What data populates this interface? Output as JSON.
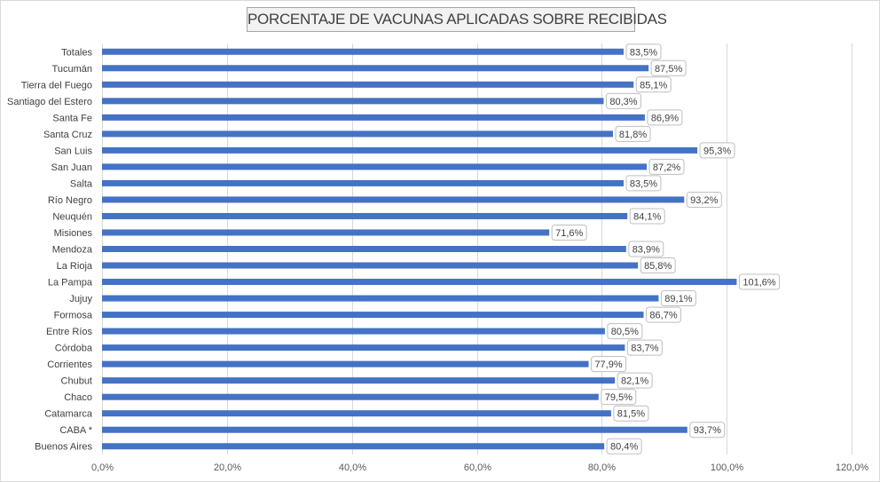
{
  "chart_data": {
    "type": "bar",
    "orientation": "horizontal",
    "title": "PORCENTAJE DE VACUNAS APLICADAS SOBRE RECIBIDAS",
    "categories": [
      "Totales",
      "Tucumán",
      "Tierra del Fuego",
      "Santiago del Estero",
      "Santa Fe",
      "Santa Cruz",
      "San Luis",
      "San Juan",
      "Salta",
      "Río Negro",
      "Neuquén",
      "Misiones",
      "Mendoza",
      "La Rioja",
      "La Pampa",
      "Jujuy",
      "Formosa",
      "Entre Ríos",
      "Córdoba",
      "Corrientes",
      "Chubut",
      "Chaco",
      "Catamarca",
      "CABA *",
      "Buenos Aires"
    ],
    "values": [
      83.5,
      87.5,
      85.1,
      80.3,
      86.9,
      81.8,
      95.3,
      87.2,
      83.5,
      93.2,
      84.1,
      71.6,
      83.9,
      85.8,
      101.6,
      89.1,
      86.7,
      80.5,
      83.7,
      77.9,
      82.1,
      79.5,
      81.5,
      93.7,
      80.4
    ],
    "data_labels": [
      "83,5%",
      "87,5%",
      "85,1%",
      "80,3%",
      "86,9%",
      "81,8%",
      "95,3%",
      "87,2%",
      "83,5%",
      "93,2%",
      "84,1%",
      "71,6%",
      "83,9%",
      "85,8%",
      "101,6%",
      "89,1%",
      "86,7%",
      "80,5%",
      "83,7%",
      "77,9%",
      "82,1%",
      "79,5%",
      "81,5%",
      "93,7%",
      "80,4%"
    ],
    "xlim": [
      0,
      120
    ],
    "x_ticks": [
      0,
      20,
      40,
      60,
      80,
      100,
      120
    ],
    "x_tick_labels": [
      "0,0%",
      "20,0%",
      "40,0%",
      "60,0%",
      "80,0%",
      "100,0%",
      "120,0%"
    ],
    "grid": true,
    "legend": "none",
    "bar_color": "#4472c4",
    "gridline_color": "#d9d9d9"
  }
}
